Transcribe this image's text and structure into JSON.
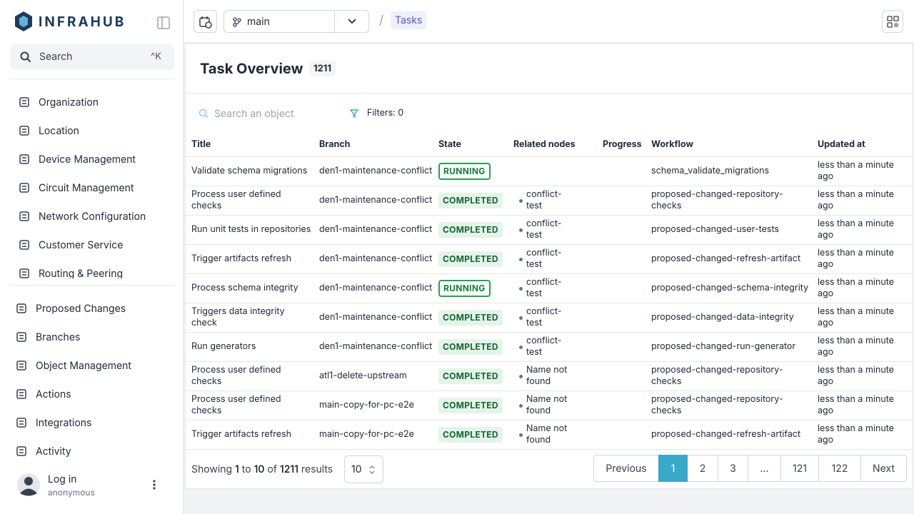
{
  "sidebar": {
    "brand": "INFRAHUB",
    "search": "Search",
    "shortcut": "^K",
    "nav": [
      "Organization",
      "Location",
      "Device Management",
      "Circuit Management",
      "Network Configuration",
      "Customer Service",
      "Routing & Peering"
    ],
    "nav2": [
      "Proposed Changes",
      "Branches",
      "Object Management",
      "Actions",
      "Integrations",
      "Activity"
    ],
    "user": {
      "name": "Log in",
      "role": "anonymous"
    }
  },
  "header": {
    "branch": "main",
    "separator": "/",
    "crumb": "Tasks"
  },
  "page": {
    "title": "Task Overview",
    "count": 1211,
    "search_placeholder": "Search an object",
    "filters": "Filters: 0"
  },
  "table": {
    "columns": [
      "Title",
      "Branch",
      "State",
      "Related nodes",
      "Progress",
      "Workflow",
      "Updated at"
    ],
    "rows": [
      {
        "title": "Validate schema migrations",
        "branch": "den1-maintenance-conflict",
        "state": "RUNNING",
        "state_outline": true,
        "workflow": "schema_validate_migrations",
        "updated": "less than a minute ago"
      },
      {
        "title": "Process user defined checks",
        "branch": "den1-maintenance-conflict",
        "state": "COMPLETED",
        "state_outline": false,
        "related": "conflict-test",
        "workflow": "proposed-changed-repository-checks",
        "updated": "less than a minute ago"
      },
      {
        "title": "Run unit tests in repositories",
        "branch": "den1-maintenance-conflict",
        "state": "COMPLETED",
        "state_outline": false,
        "related": "conflict-test",
        "workflow": "proposed-changed-user-tests",
        "updated": "less than a minute ago"
      },
      {
        "title": "Trigger artifacts refresh",
        "branch": "den1-maintenance-conflict",
        "state": "COMPLETED",
        "state_outline": false,
        "related": "conflict-test",
        "workflow": "proposed-changed-refresh-artifact",
        "updated": "less than a minute ago"
      },
      {
        "title": "Process schema integrity",
        "branch": "den1-maintenance-conflict",
        "state": "RUNNING",
        "state_outline": true,
        "related": "conflict-test",
        "workflow": "proposed-changed-schema-integrity",
        "updated": "less than a minute ago"
      },
      {
        "title": "Triggers data integrity check",
        "branch": "den1-maintenance-conflict",
        "state": "COMPLETED",
        "state_outline": false,
        "related": "conflict-test",
        "workflow": "proposed-changed-data-integrity",
        "updated": "less than a minute ago"
      },
      {
        "title": "Run generators",
        "branch": "den1-maintenance-conflict",
        "state": "COMPLETED",
        "state_outline": false,
        "related": "conflict-test",
        "workflow": "proposed-changed-run-generator",
        "updated": "less than a minute ago"
      },
      {
        "title": "Process user defined checks",
        "branch": "atl1-delete-upstream",
        "state": "COMPLETED",
        "state_outline": false,
        "related": "Name not found",
        "workflow": "proposed-changed-repository-checks",
        "updated": "less than a minute ago"
      },
      {
        "title": "Process user defined checks",
        "branch": "main-copy-for-pc-e2e",
        "state": "COMPLETED",
        "state_outline": false,
        "related": "Name not found",
        "workflow": "proposed-changed-repository-checks",
        "updated": "less than a minute ago"
      },
      {
        "title": "Trigger artifacts refresh",
        "branch": "main-copy-for-pc-e2e",
        "state": "COMPLETED",
        "state_outline": false,
        "related": "Name not found",
        "workflow": "proposed-changed-refresh-artifact",
        "updated": "less than a minute ago"
      }
    ]
  },
  "pagination": {
    "showing": "Showing",
    "from": 1,
    "to_word": "to",
    "to": 10,
    "of_word": "of",
    "total": 1211,
    "results": "results",
    "page_size": 10,
    "pages": [
      "Previous",
      "1",
      "2",
      "3",
      "...",
      "121",
      "122",
      "Next"
    ],
    "current": 1
  }
}
